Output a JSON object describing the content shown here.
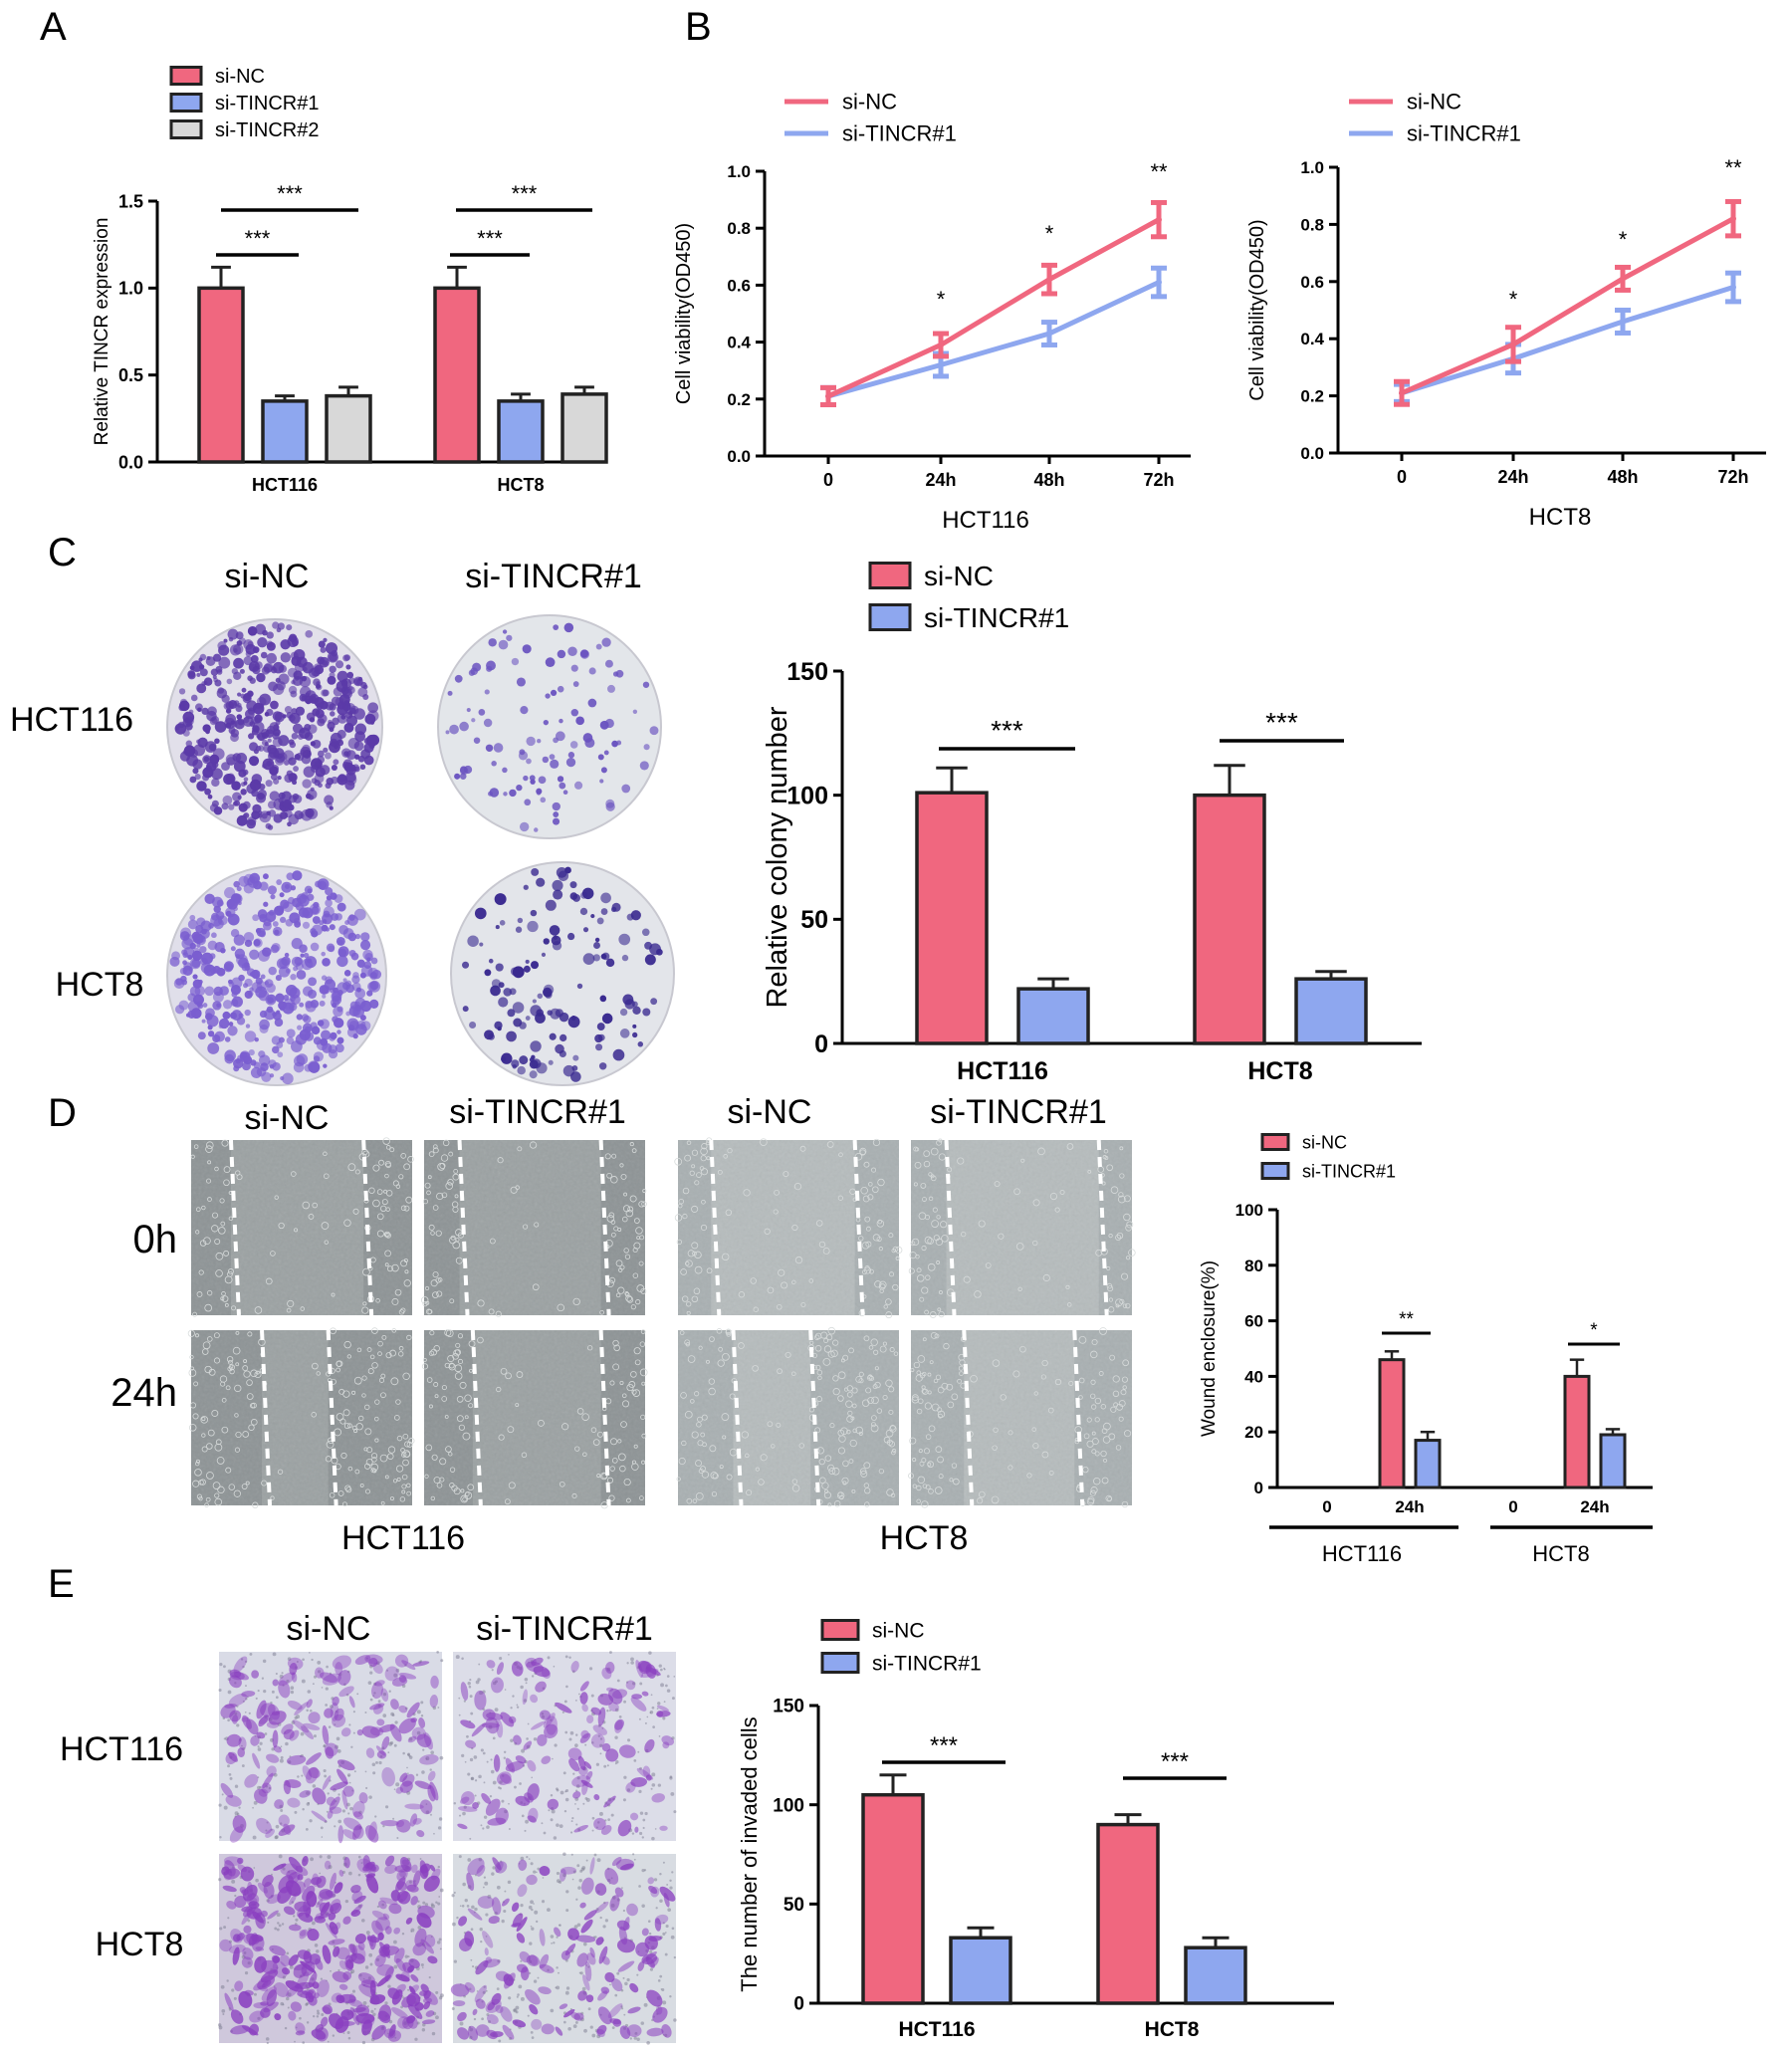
{
  "colors": {
    "si_nc": "#f0677f",
    "si_tincr1": "#8ea7ef",
    "si_tincr2": "#d8d8d8",
    "axis": "#000000",
    "stain": "#5a3fb5",
    "scratch_bg": "#9aa0a2"
  },
  "panels": {
    "A": {
      "letter": "A"
    },
    "B": {
      "letter": "B"
    },
    "C": {
      "letter": "C",
      "col_labels": [
        "si-NC",
        "si-TINCR#1"
      ],
      "row_labels": [
        "HCT116",
        "HCT8"
      ]
    },
    "D": {
      "letter": "D",
      "time_labels": [
        "0h",
        "24h"
      ],
      "col_labels": [
        "si-NC",
        "si-TINCR#1",
        "si-NC",
        "si-TINCR#1"
      ],
      "cell_labels": [
        "HCT116",
        "HCT8"
      ]
    },
    "E": {
      "letter": "E",
      "col_labels": [
        "si-NC",
        "si-TINCR#1"
      ],
      "row_labels": [
        "HCT116",
        "HCT8"
      ]
    }
  },
  "chart_data": [
    {
      "id": "A",
      "type": "bar",
      "categories": [
        "HCT116",
        "HCT8"
      ],
      "series": [
        {
          "name": "si-NC",
          "values": [
            1.0,
            1.0
          ],
          "errors": [
            0.12,
            0.12
          ]
        },
        {
          "name": "si-TINCR#1",
          "values": [
            0.35,
            0.35
          ],
          "errors": [
            0.03,
            0.04
          ]
        },
        {
          "name": "si-TINCR#2",
          "values": [
            0.38,
            0.39
          ],
          "errors": [
            0.05,
            0.04
          ]
        }
      ],
      "ylabel": "Relative TINCR expression",
      "ylim": [
        0,
        1.5
      ],
      "yticks": [
        "0.0",
        "0.5",
        "1.0",
        "1.5"
      ],
      "significance": [
        "***",
        "***",
        "***",
        "***"
      ],
      "legend": "top-left"
    },
    {
      "id": "B1",
      "type": "line",
      "x": [
        "0",
        "24h",
        "48h",
        "72h"
      ],
      "series": [
        {
          "name": "si-NC",
          "values": [
            0.21,
            0.39,
            0.62,
            0.83
          ],
          "errors": [
            0.03,
            0.04,
            0.05,
            0.06
          ]
        },
        {
          "name": "si-TINCR#1",
          "values": [
            0.21,
            0.32,
            0.43,
            0.61
          ],
          "errors": [
            0.03,
            0.04,
            0.04,
            0.05
          ]
        }
      ],
      "xlabel": "HCT116",
      "ylabel": "Cell viability(OD450)",
      "ylim": [
        0,
        1.0
      ],
      "yticks": [
        "0.0",
        "0.2",
        "0.4",
        "0.6",
        "0.8",
        "1.0"
      ],
      "significance": [
        "*",
        "*",
        "**"
      ],
      "legend": "top-left"
    },
    {
      "id": "B2",
      "type": "line",
      "x": [
        "0",
        "24h",
        "48h",
        "72h"
      ],
      "series": [
        {
          "name": "si-NC",
          "values": [
            0.21,
            0.38,
            0.61,
            0.82
          ],
          "errors": [
            0.04,
            0.06,
            0.04,
            0.06
          ]
        },
        {
          "name": "si-TINCR#1",
          "values": [
            0.21,
            0.33,
            0.46,
            0.58
          ],
          "errors": [
            0.03,
            0.05,
            0.04,
            0.05
          ]
        }
      ],
      "xlabel": "HCT8",
      "ylabel": "Cell viability(OD450)",
      "ylim": [
        0,
        1.0
      ],
      "yticks": [
        "0.0",
        "0.2",
        "0.4",
        "0.6",
        "0.8",
        "1.0"
      ],
      "significance": [
        "*",
        "*",
        "**"
      ],
      "legend": "top-left"
    },
    {
      "id": "C",
      "type": "bar",
      "categories": [
        "HCT116",
        "HCT8"
      ],
      "series": [
        {
          "name": "si-NC",
          "values": [
            101,
            100
          ],
          "errors": [
            10,
            12
          ]
        },
        {
          "name": "si-TINCR#1",
          "values": [
            22,
            26
          ],
          "errors": [
            4,
            3
          ]
        }
      ],
      "ylabel": "Relative colony number",
      "ylim": [
        0,
        150
      ],
      "yticks": [
        "0",
        "50",
        "100",
        "150"
      ],
      "significance": [
        "***",
        "***"
      ],
      "legend": "top-left"
    },
    {
      "id": "D",
      "type": "bar",
      "categories": [
        "0",
        "24h",
        "0",
        "24h"
      ],
      "groups": [
        "HCT116",
        "HCT8"
      ],
      "series": [
        {
          "name": "si-NC",
          "values": [
            0,
            46,
            0,
            40
          ],
          "errors": [
            0,
            3,
            0,
            6
          ]
        },
        {
          "name": "si-TINCR#1",
          "values": [
            0,
            17,
            0,
            19
          ],
          "errors": [
            0,
            3,
            0,
            2
          ]
        }
      ],
      "ylabel": "Wound enclosure(%)",
      "ylim": [
        0,
        100
      ],
      "yticks": [
        "0",
        "20",
        "40",
        "60",
        "80",
        "100"
      ],
      "significance": [
        "**",
        "*"
      ],
      "legend": "top-left"
    },
    {
      "id": "E",
      "type": "bar",
      "categories": [
        "HCT116",
        "HCT8"
      ],
      "series": [
        {
          "name": "si-NC",
          "values": [
            105,
            90
          ],
          "errors": [
            10,
            5
          ]
        },
        {
          "name": "si-TINCR#1",
          "values": [
            33,
            28
          ],
          "errors": [
            5,
            5
          ]
        }
      ],
      "ylabel": "The number of invaded cells",
      "ylim": [
        0,
        150
      ],
      "yticks": [
        "0",
        "50",
        "100",
        "150"
      ],
      "significance": [
        "***",
        "***"
      ],
      "legend": "top-left"
    }
  ]
}
